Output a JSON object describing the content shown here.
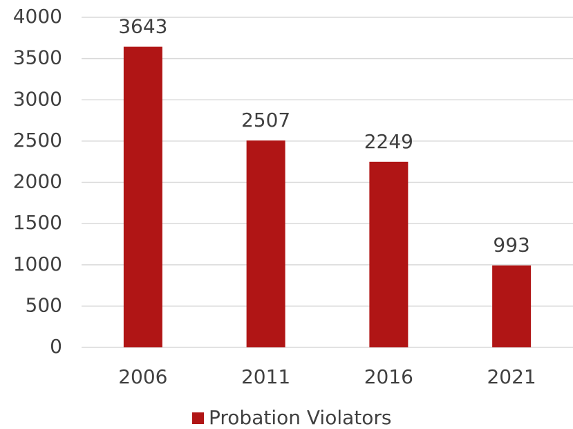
{
  "chart_data": {
    "type": "bar",
    "categories": [
      "2006",
      "2011",
      "2016",
      "2021"
    ],
    "series": [
      {
        "name": "Probation Violators",
        "color": "#b01515",
        "values": [
          3643,
          2507,
          2249,
          993
        ]
      }
    ],
    "ylim": [
      0,
      4000
    ],
    "yticks": [
      0,
      500,
      1000,
      1500,
      2000,
      2500,
      3000,
      3500,
      4000
    ],
    "grid": true,
    "legend": "bottom",
    "data_labels": true
  }
}
